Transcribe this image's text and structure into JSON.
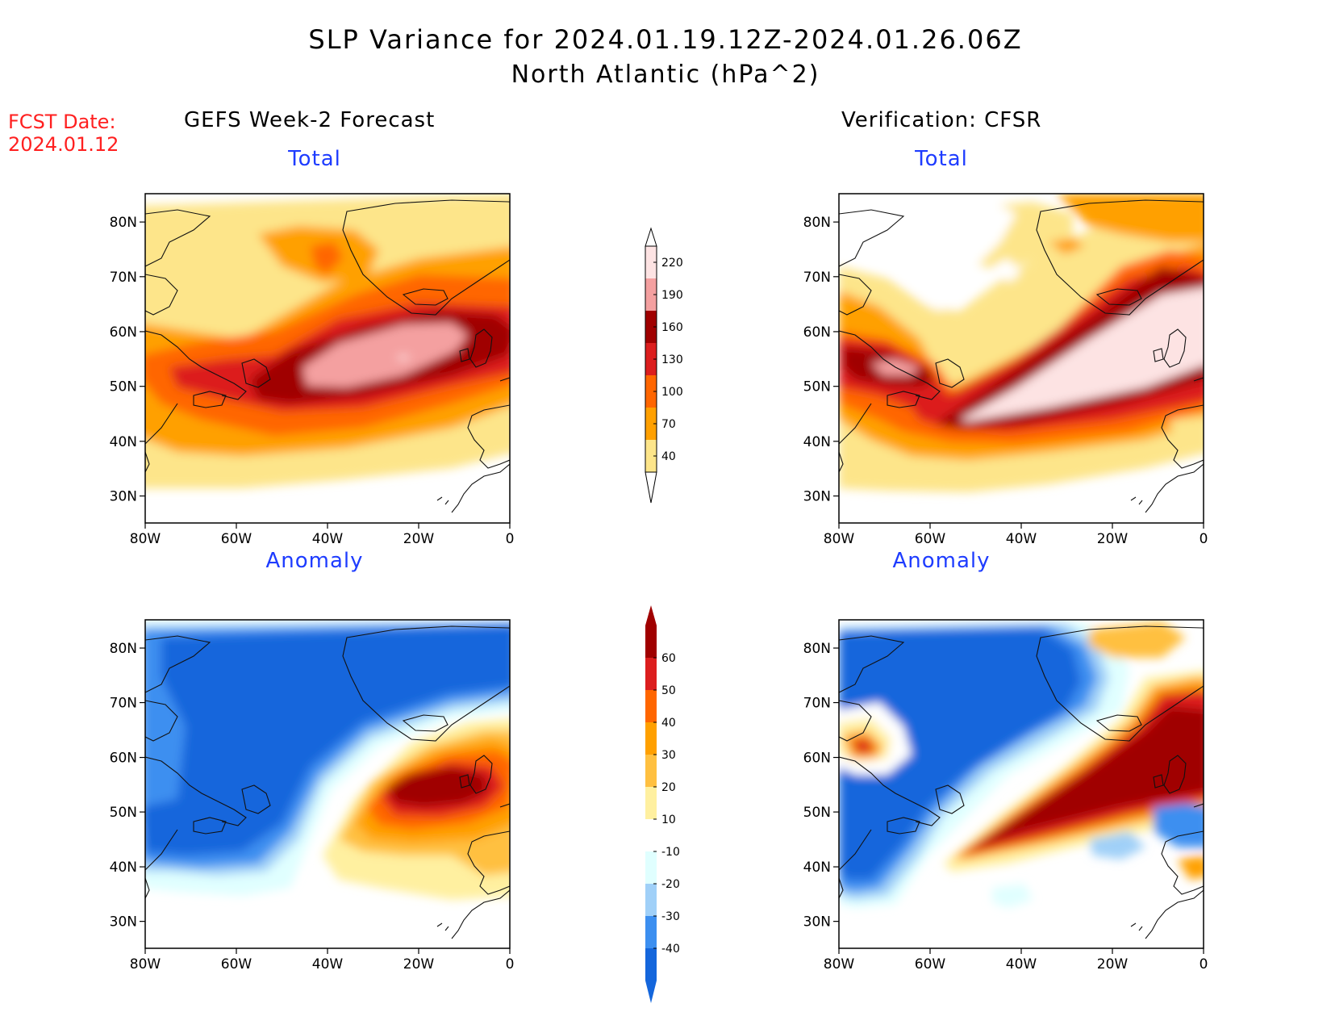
{
  "header": {
    "title": "SLP Variance for 2024.01.19.12Z-2024.01.26.06Z",
    "subtitle": "North Atlantic (hPa^2)",
    "fcst_label": "FCST Date:",
    "fcst_date": "2024.01.12"
  },
  "columns": {
    "left": "GEFS Week-2 Forecast",
    "right": "Verification: CFSR"
  },
  "panels": {
    "total_left": "Total",
    "total_right": "Total",
    "anom_left": "Anomaly",
    "anom_right": "Anomaly"
  },
  "axes": {
    "lat_labels": [
      "80N",
      "70N",
      "60N",
      "50N",
      "40N",
      "30N"
    ],
    "lon_labels": [
      "80W",
      "60W",
      "40W",
      "20W",
      "0"
    ]
  },
  "colorbars": {
    "total": {
      "levels": [
        "220",
        "190",
        "160",
        "130",
        "100",
        "70",
        "40"
      ],
      "colors": [
        "#fde3e3",
        "#f4a0a0",
        "#a00000",
        "#dc1e1e",
        "#ff6600",
        "#ffa000",
        "#fde58a"
      ]
    },
    "anomaly": {
      "levels": [
        "60",
        "50",
        "40",
        "30",
        "20",
        "10",
        "-10",
        "-20",
        "-30",
        "-40"
      ],
      "colors": [
        "#a00000",
        "#dc1e1e",
        "#ff6600",
        "#ffa000",
        "#ffc040",
        "#fff0a0",
        "#ffffff",
        "#e0ffff",
        "#a0d0f8",
        "#3c8ff0",
        "#1466dc"
      ]
    }
  }
}
